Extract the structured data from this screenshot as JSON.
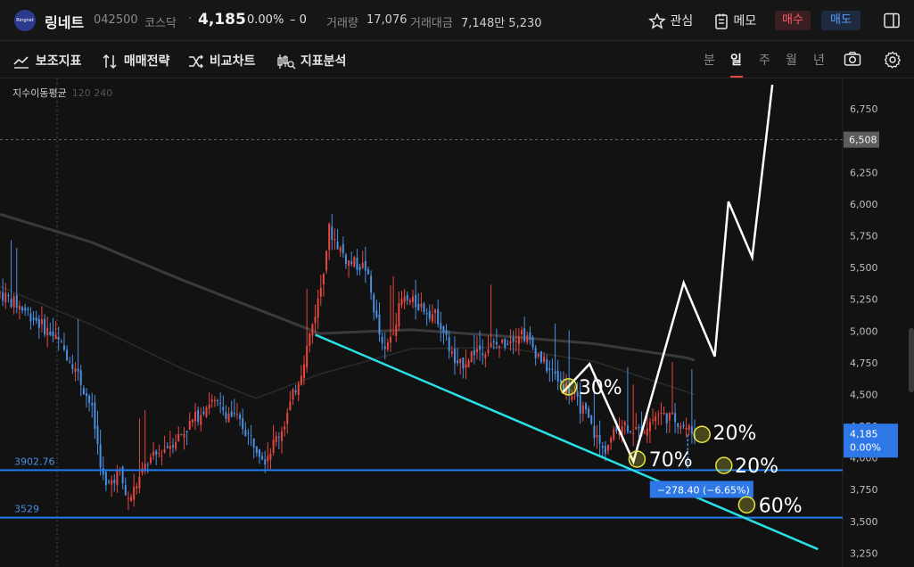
{
  "header": {
    "logo_text": "Ringnet",
    "stock_name": "링네트",
    "stock_code": "042500",
    "market": "코스닥",
    "separator": "·",
    "price": "4,185",
    "change_pct": "0.00%",
    "change_abs": "– 0",
    "volume_label": "거래량",
    "volume_value": "17,076",
    "amount_label": "거래대금",
    "amount_value": "7,148만 5,230",
    "watch_label": "관심",
    "memo_label": "메모",
    "buy_label": "매수",
    "sell_label": "매도"
  },
  "toolbar": {
    "indicators_label": "보조지표",
    "strategy_label": "매매전략",
    "compare_label": "비교차트",
    "analysis_label": "지표분석",
    "timeframes": [
      "분",
      "일",
      "주",
      "월",
      "년"
    ],
    "active_timeframe": "일"
  },
  "legend": {
    "name": "지수이동평균",
    "params": "120 240"
  },
  "colors": {
    "up": "#e8473f",
    "down": "#4a8fe0",
    "support_line": "#1e7bf0",
    "trend_line": "#27e1e6",
    "projection": "#ffffff",
    "ma120": "#3a3a3a",
    "ma240": "#2b2b2b",
    "price_tag": "#2d78e6",
    "ref_tag": "#5c5c5c",
    "marker": "#e6e640"
  },
  "chart_data": {
    "type": "candlestick",
    "y_axis": {
      "ticks": [
        "6,750",
        "6,500",
        "6,250",
        "6,000",
        "5,750",
        "5,500",
        "5,250",
        "5,000",
        "4,750",
        "4,500",
        "4,250",
        "4,000",
        "3,750",
        "3,500",
        "3,250"
      ],
      "tick_values": [
        6750,
        6500,
        6250,
        6000,
        5750,
        5500,
        5250,
        5000,
        4750,
        4500,
        4250,
        4000,
        3750,
        3500,
        3250
      ],
      "range": [
        3140,
        6990
      ]
    },
    "reference_price": {
      "value": 6508,
      "label": "6,508"
    },
    "current_price": {
      "value": 4185,
      "label": "4,185",
      "pct": "0.00%"
    },
    "support_lines": [
      {
        "value": 3902.76,
        "label": "3902.76"
      },
      {
        "value": 3529,
        "label": "3529"
      }
    ],
    "trend_line": {
      "from": [
        0.345,
        4970
      ],
      "to": [
        0.895,
        3280
      ]
    },
    "ma_lines": [
      {
        "name": "120",
        "points": [
          [
            0.0,
            5920
          ],
          [
            0.1,
            5700
          ],
          [
            0.2,
            5400
          ],
          [
            0.3,
            5120
          ],
          [
            0.35,
            4980
          ],
          [
            0.45,
            5010
          ],
          [
            0.55,
            4960
          ],
          [
            0.65,
            4900
          ],
          [
            0.75,
            4790
          ],
          [
            0.76,
            4770
          ]
        ]
      },
      {
        "name": "240",
        "points": [
          [
            0.0,
            5350
          ],
          [
            0.1,
            5050
          ],
          [
            0.2,
            4700
          ],
          [
            0.28,
            4470
          ],
          [
            0.35,
            4660
          ],
          [
            0.45,
            4860
          ],
          [
            0.55,
            4870
          ],
          [
            0.65,
            4760
          ],
          [
            0.76,
            4500
          ]
        ]
      }
    ],
    "projection_path": [
      [
        4510,
        0
      ],
      [
        4740,
        0
      ],
      [
        3970,
        0
      ],
      [
        5380,
        0
      ],
      [
        4800,
        0
      ],
      [
        6020,
        0
      ],
      [
        5580,
        0
      ],
      [
        6940,
        0
      ]
    ],
    "projection_x": [
      0.615,
      0.645,
      0.693,
      0.748,
      0.782,
      0.797,
      0.823,
      0.845
    ],
    "annotations": [
      {
        "text": "30%",
        "x": 0.633,
        "y": 4560
      },
      {
        "text": "70%",
        "x": 0.71,
        "y": 3990
      },
      {
        "text": "20%",
        "x": 0.78,
        "y": 4200
      },
      {
        "text": "20%",
        "x": 0.804,
        "y": 3940
      },
      {
        "text": "60%",
        "x": 0.83,
        "y": 3630
      }
    ],
    "markers": [
      {
        "x": 0.622,
        "y": 4560
      },
      {
        "x": 0.697,
        "y": 3990
      },
      {
        "x": 0.768,
        "y": 4185
      },
      {
        "x": 0.792,
        "y": 3940
      },
      {
        "x": 0.817,
        "y": 3630
      }
    ],
    "measure": {
      "label": "−278.40  (−6.65%)",
      "x": 0.713,
      "y": 3748
    },
    "candle_trend": [
      [
        0.0,
        5300
      ],
      [
        0.03,
        5150
      ],
      [
        0.06,
        4950
      ],
      [
        0.08,
        4750
      ],
      [
        0.1,
        4400
      ],
      [
        0.115,
        3750
      ],
      [
        0.13,
        3900
      ],
      [
        0.14,
        3650
      ],
      [
        0.16,
        3950
      ],
      [
        0.2,
        4200
      ],
      [
        0.23,
        4450
      ],
      [
        0.26,
        4300
      ],
      [
        0.29,
        4000
      ],
      [
        0.31,
        4250
      ],
      [
        0.33,
        4700
      ],
      [
        0.35,
        5300
      ],
      [
        0.36,
        5800
      ],
      [
        0.38,
        5550
      ],
      [
        0.4,
        5500
      ],
      [
        0.42,
        4800
      ],
      [
        0.44,
        5250
      ],
      [
        0.46,
        5200
      ],
      [
        0.48,
        5100
      ],
      [
        0.5,
        4700
      ],
      [
        0.52,
        4850
      ],
      [
        0.55,
        4900
      ],
      [
        0.57,
        5000
      ],
      [
        0.6,
        4700
      ],
      [
        0.62,
        4550
      ],
      [
        0.64,
        4350
      ],
      [
        0.66,
        4050
      ],
      [
        0.68,
        4280
      ],
      [
        0.7,
        4200
      ],
      [
        0.72,
        4350
      ],
      [
        0.74,
        4300
      ],
      [
        0.76,
        4185
      ]
    ]
  }
}
